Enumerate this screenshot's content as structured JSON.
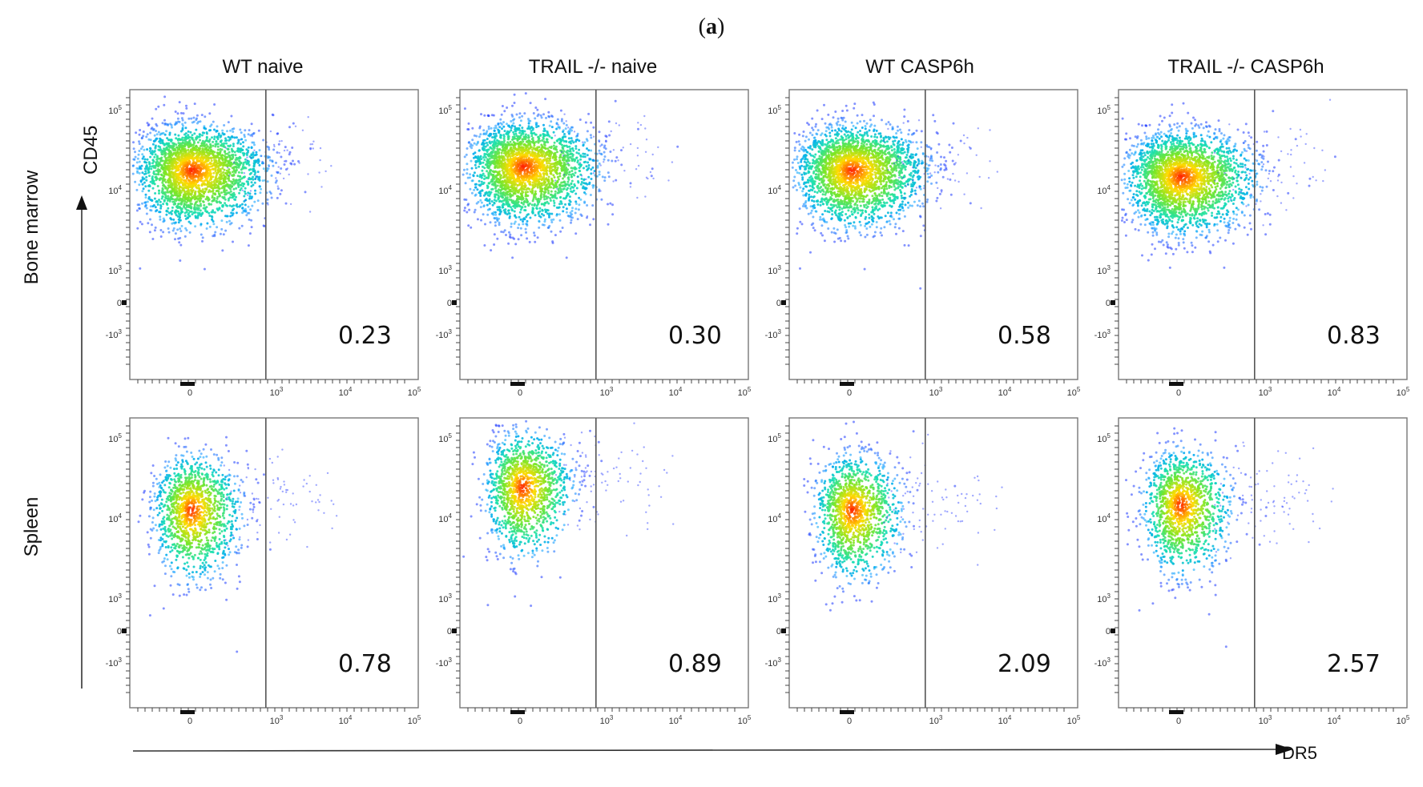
{
  "panel_label": "a",
  "axis_labels": {
    "y": "CD45",
    "x": "DR5"
  },
  "rows": [
    "Bone marrow",
    "Spleen"
  ],
  "columns": [
    "WT naive",
    "TRAIL -/- naive",
    "WT CASP6h",
    "TRAIL -/- CASP6h"
  ],
  "colors": {
    "low": "#1f3bff",
    "mid": "#18e0b0",
    "high": "#ff1a00",
    "gate": "#555555"
  },
  "chart_data": {
    "type": "scatter",
    "title": "",
    "xlabel": "DR5",
    "ylabel": "CD45",
    "x_ticks": [
      "0",
      "10^3",
      "10^4",
      "10^5"
    ],
    "y_ticks": [
      "-10^3",
      "0",
      "10^3",
      "10^4",
      "10^5"
    ],
    "x_tick_labels": {
      "zero": "0",
      "pos": [
        [
          "10",
          "3"
        ],
        [
          "10",
          "4"
        ],
        [
          "10",
          "5"
        ]
      ]
    },
    "y_tick_labels": {
      "neg": [
        "-10",
        "3"
      ],
      "zero": "0",
      "pos": [
        [
          "10",
          "3"
        ],
        [
          "10",
          "4"
        ],
        [
          "10",
          "5"
        ]
      ]
    },
    "gate_x": 800,
    "panels": [
      {
        "row": "Bone marrow",
        "column": "WT naive",
        "positive_percent": "0.23",
        "center_x": 30,
        "center_y": 18000,
        "density": "high"
      },
      {
        "row": "Bone marrow",
        "column": "TRAIL -/- naive",
        "positive_percent": "0.30",
        "center_x": 60,
        "center_y": 20000,
        "density": "high"
      },
      {
        "row": "Bone marrow",
        "column": "WT CASP6h",
        "positive_percent": "0.58",
        "center_x": 40,
        "center_y": 18000,
        "density": "high"
      },
      {
        "row": "Bone marrow",
        "column": "TRAIL -/- CASP6h",
        "positive_percent": "0.83",
        "center_x": 40,
        "center_y": 15000,
        "density": "high"
      },
      {
        "row": "Spleen",
        "column": "WT naive",
        "positive_percent": "0.78",
        "center_x": 20,
        "center_y": 13000,
        "density": "medium"
      },
      {
        "row": "Spleen",
        "column": "TRAIL -/- naive",
        "positive_percent": "0.89",
        "center_x": 40,
        "center_y": 25000,
        "density": "medium"
      },
      {
        "row": "Spleen",
        "column": "WT CASP6h",
        "positive_percent": "2.09",
        "center_x": 50,
        "center_y": 13000,
        "density": "medium"
      },
      {
        "row": "Spleen",
        "column": "TRAIL -/- CASP6h",
        "positive_percent": "2.57",
        "center_x": 30,
        "center_y": 15000,
        "density": "medium"
      }
    ]
  }
}
